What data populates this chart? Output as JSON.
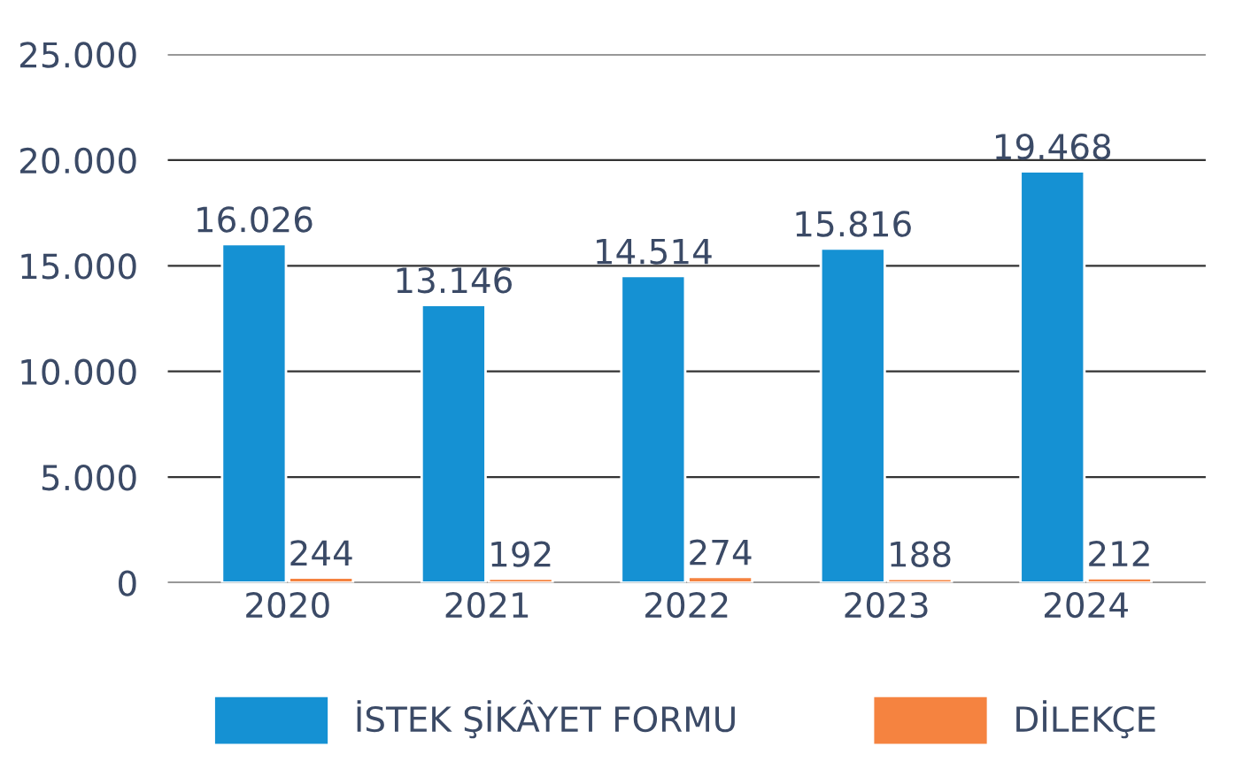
{
  "chart_data": {
    "type": "bar",
    "categories": [
      "2020",
      "2021",
      "2022",
      "2023",
      "2024"
    ],
    "series": [
      {
        "name": "İSTEK ŞİKÂYET FORMU",
        "color": "#1591d3",
        "values": [
          16026,
          13146,
          14514,
          15816,
          19468
        ],
        "value_labels": [
          "16.026",
          "13.146",
          "14.514",
          "15.816",
          "19.468"
        ]
      },
      {
        "name": "DİLEKÇE",
        "color": "#f58340",
        "values": [
          244,
          192,
          274,
          188,
          212
        ],
        "value_labels": [
          "244",
          "192",
          "274",
          "188",
          "212"
        ]
      }
    ],
    "ylim": [
      0,
      25000
    ],
    "yticks": [
      0,
      {
        "value": 5000,
        "label": "5.000"
      },
      {
        "value": 10000,
        "label": "10.000"
      },
      {
        "value": 15000,
        "label": "15.000"
      },
      {
        "value": 20000,
        "label": "20.000"
      },
      {
        "value": 25000,
        "label": "25.000"
      }
    ],
    "grid": "y",
    "legend": "bottom"
  }
}
